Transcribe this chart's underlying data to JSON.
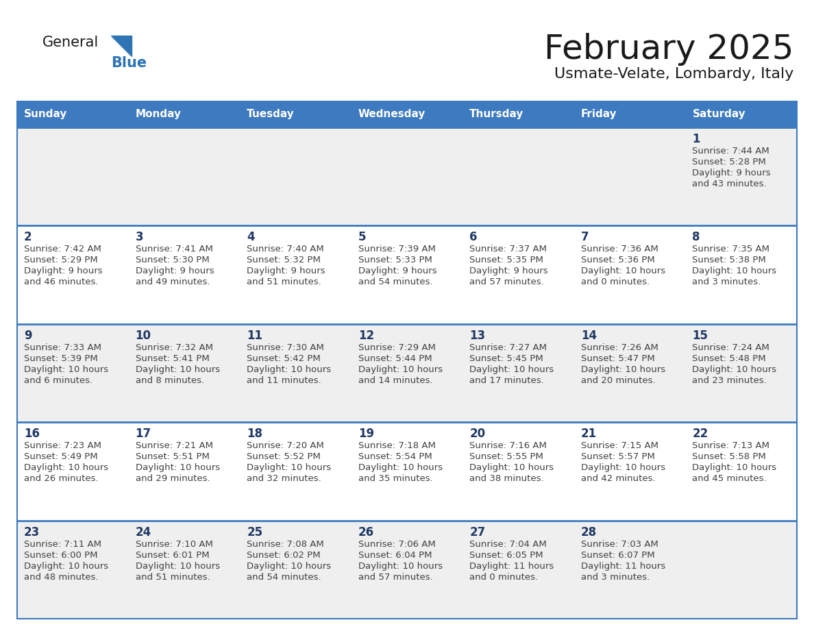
{
  "title": "February 2025",
  "subtitle": "Usmate-Velate, Lombardy, Italy",
  "days_of_week": [
    "Sunday",
    "Monday",
    "Tuesday",
    "Wednesday",
    "Thursday",
    "Friday",
    "Saturday"
  ],
  "header_bg": "#3D7ABF",
  "header_text": "#FFFFFF",
  "cell_bg_odd": "#EFEFEF",
  "cell_bg_even": "#FFFFFF",
  "day_number_color": "#1F3864",
  "cell_text_color": "#404040",
  "border_color": "#3D7ABF",
  "logo_general_color": "#1a1a1a",
  "logo_blue_color": "#2E74B5",
  "calendar_data": [
    [
      null,
      null,
      null,
      null,
      null,
      null,
      {
        "day": "1",
        "sunrise": "7:44 AM",
        "sunset": "5:28 PM",
        "daylight": "9 hours",
        "daylight2": "and 43 minutes."
      }
    ],
    [
      {
        "day": "2",
        "sunrise": "7:42 AM",
        "sunset": "5:29 PM",
        "daylight": "9 hours",
        "daylight2": "and 46 minutes."
      },
      {
        "day": "3",
        "sunrise": "7:41 AM",
        "sunset": "5:30 PM",
        "daylight": "9 hours",
        "daylight2": "and 49 minutes."
      },
      {
        "day": "4",
        "sunrise": "7:40 AM",
        "sunset": "5:32 PM",
        "daylight": "9 hours",
        "daylight2": "and 51 minutes."
      },
      {
        "day": "5",
        "sunrise": "7:39 AM",
        "sunset": "5:33 PM",
        "daylight": "9 hours",
        "daylight2": "and 54 minutes."
      },
      {
        "day": "6",
        "sunrise": "7:37 AM",
        "sunset": "5:35 PM",
        "daylight": "9 hours",
        "daylight2": "and 57 minutes."
      },
      {
        "day": "7",
        "sunrise": "7:36 AM",
        "sunset": "5:36 PM",
        "daylight": "10 hours",
        "daylight2": "and 0 minutes."
      },
      {
        "day": "8",
        "sunrise": "7:35 AM",
        "sunset": "5:38 PM",
        "daylight": "10 hours",
        "daylight2": "and 3 minutes."
      }
    ],
    [
      {
        "day": "9",
        "sunrise": "7:33 AM",
        "sunset": "5:39 PM",
        "daylight": "10 hours",
        "daylight2": "and 6 minutes."
      },
      {
        "day": "10",
        "sunrise": "7:32 AM",
        "sunset": "5:41 PM",
        "daylight": "10 hours",
        "daylight2": "and 8 minutes."
      },
      {
        "day": "11",
        "sunrise": "7:30 AM",
        "sunset": "5:42 PM",
        "daylight": "10 hours",
        "daylight2": "and 11 minutes."
      },
      {
        "day": "12",
        "sunrise": "7:29 AM",
        "sunset": "5:44 PM",
        "daylight": "10 hours",
        "daylight2": "and 14 minutes."
      },
      {
        "day": "13",
        "sunrise": "7:27 AM",
        "sunset": "5:45 PM",
        "daylight": "10 hours",
        "daylight2": "and 17 minutes."
      },
      {
        "day": "14",
        "sunrise": "7:26 AM",
        "sunset": "5:47 PM",
        "daylight": "10 hours",
        "daylight2": "and 20 minutes."
      },
      {
        "day": "15",
        "sunrise": "7:24 AM",
        "sunset": "5:48 PM",
        "daylight": "10 hours",
        "daylight2": "and 23 minutes."
      }
    ],
    [
      {
        "day": "16",
        "sunrise": "7:23 AM",
        "sunset": "5:49 PM",
        "daylight": "10 hours",
        "daylight2": "and 26 minutes."
      },
      {
        "day": "17",
        "sunrise": "7:21 AM",
        "sunset": "5:51 PM",
        "daylight": "10 hours",
        "daylight2": "and 29 minutes."
      },
      {
        "day": "18",
        "sunrise": "7:20 AM",
        "sunset": "5:52 PM",
        "daylight": "10 hours",
        "daylight2": "and 32 minutes."
      },
      {
        "day": "19",
        "sunrise": "7:18 AM",
        "sunset": "5:54 PM",
        "daylight": "10 hours",
        "daylight2": "and 35 minutes."
      },
      {
        "day": "20",
        "sunrise": "7:16 AM",
        "sunset": "5:55 PM",
        "daylight": "10 hours",
        "daylight2": "and 38 minutes."
      },
      {
        "day": "21",
        "sunrise": "7:15 AM",
        "sunset": "5:57 PM",
        "daylight": "10 hours",
        "daylight2": "and 42 minutes."
      },
      {
        "day": "22",
        "sunrise": "7:13 AM",
        "sunset": "5:58 PM",
        "daylight": "10 hours",
        "daylight2": "and 45 minutes."
      }
    ],
    [
      {
        "day": "23",
        "sunrise": "7:11 AM",
        "sunset": "6:00 PM",
        "daylight": "10 hours",
        "daylight2": "and 48 minutes."
      },
      {
        "day": "24",
        "sunrise": "7:10 AM",
        "sunset": "6:01 PM",
        "daylight": "10 hours",
        "daylight2": "and 51 minutes."
      },
      {
        "day": "25",
        "sunrise": "7:08 AM",
        "sunset": "6:02 PM",
        "daylight": "10 hours",
        "daylight2": "and 54 minutes."
      },
      {
        "day": "26",
        "sunrise": "7:06 AM",
        "sunset": "6:04 PM",
        "daylight": "10 hours",
        "daylight2": "and 57 minutes."
      },
      {
        "day": "27",
        "sunrise": "7:04 AM",
        "sunset": "6:05 PM",
        "daylight": "11 hours",
        "daylight2": "and 0 minutes."
      },
      {
        "day": "28",
        "sunrise": "7:03 AM",
        "sunset": "6:07 PM",
        "daylight": "11 hours",
        "daylight2": "and 3 minutes."
      },
      null
    ]
  ]
}
